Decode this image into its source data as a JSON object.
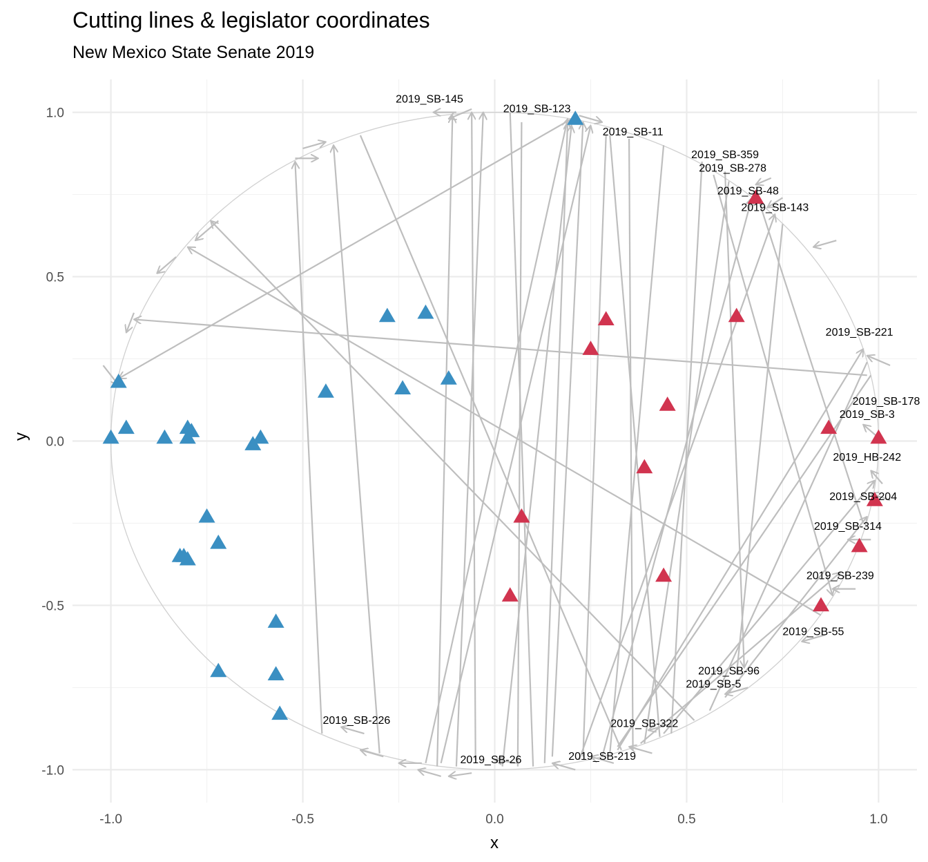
{
  "chart_data": {
    "type": "scatter",
    "title": "Cutting lines & legislator coordinates",
    "subtitle": "New Mexico State Senate 2019",
    "xlabel": "x",
    "ylabel": "y",
    "xlim": [
      -1.1,
      1.1
    ],
    "ylim": [
      -1.1,
      1.1
    ],
    "x_ticks": [
      -1.0,
      -0.5,
      0.0,
      0.5,
      1.0
    ],
    "y_ticks": [
      -1.0,
      -0.5,
      0.0,
      0.5,
      1.0
    ],
    "x_tick_labels": [
      "-1.0",
      "-0.5",
      "0.0",
      "0.5",
      "1.0"
    ],
    "y_tick_labels": [
      "-1.0",
      "-0.5",
      "0.0",
      "0.5",
      "1.0"
    ],
    "grid": true,
    "legend": "none",
    "unit_circle": true,
    "colors": {
      "blue": "#3a8fc2",
      "red": "#d1344f",
      "cut": "#bebebe",
      "circle": "#d0d0d0"
    },
    "series": [
      {
        "color": "#3a8fc2",
        "points": [
          {
            "x": 0.21,
            "y": 0.98
          },
          {
            "x": -0.18,
            "y": 0.39
          },
          {
            "x": -0.28,
            "y": 0.38
          },
          {
            "x": -0.12,
            "y": 0.19
          },
          {
            "x": -0.24,
            "y": 0.16
          },
          {
            "x": -0.44,
            "y": 0.15
          },
          {
            "x": -0.98,
            "y": 0.18
          },
          {
            "x": -0.96,
            "y": 0.04
          },
          {
            "x": -1.0,
            "y": 0.01
          },
          {
            "x": -0.86,
            "y": 0.01
          },
          {
            "x": -0.8,
            "y": 0.04
          },
          {
            "x": -0.79,
            "y": 0.03
          },
          {
            "x": -0.8,
            "y": 0.01
          },
          {
            "x": -0.61,
            "y": 0.01
          },
          {
            "x": -0.63,
            "y": -0.01
          },
          {
            "x": -0.75,
            "y": -0.23
          },
          {
            "x": -0.72,
            "y": -0.31
          },
          {
            "x": -0.81,
            "y": -0.35
          },
          {
            "x": -0.82,
            "y": -0.35
          },
          {
            "x": -0.8,
            "y": -0.36
          },
          {
            "x": -0.57,
            "y": -0.55
          },
          {
            "x": -0.72,
            "y": -0.7
          },
          {
            "x": -0.57,
            "y": -0.71
          },
          {
            "x": -0.56,
            "y": -0.83
          }
        ]
      },
      {
        "color": "#d1344f",
        "points": [
          {
            "x": 0.68,
            "y": 0.74
          },
          {
            "x": 0.63,
            "y": 0.38
          },
          {
            "x": 0.29,
            "y": 0.37
          },
          {
            "x": 0.25,
            "y": 0.28
          },
          {
            "x": 0.45,
            "y": 0.11
          },
          {
            "x": 0.87,
            "y": 0.04
          },
          {
            "x": 1.0,
            "y": 0.01
          },
          {
            "x": 0.39,
            "y": -0.08
          },
          {
            "x": 0.07,
            "y": -0.23
          },
          {
            "x": 0.99,
            "y": -0.18
          },
          {
            "x": 0.95,
            "y": -0.32
          },
          {
            "x": 0.44,
            "y": -0.41
          },
          {
            "x": 0.04,
            "y": -0.47
          },
          {
            "x": 0.85,
            "y": -0.5
          }
        ]
      }
    ],
    "vote_labels": [
      {
        "text": "2019_SB-145",
        "x": -0.17,
        "y": 1.03
      },
      {
        "text": "2019_SB-123",
        "x": 0.11,
        "y": 1.0
      },
      {
        "text": "2019_SB-11",
        "x": 0.36,
        "y": 0.93
      },
      {
        "text": "2019_SB-359",
        "x": 0.6,
        "y": 0.86
      },
      {
        "text": "2019_SB-278",
        "x": 0.62,
        "y": 0.82
      },
      {
        "text": "2019_SB-48",
        "x": 0.66,
        "y": 0.75
      },
      {
        "text": "2019_SB-143",
        "x": 0.73,
        "y": 0.7
      },
      {
        "text": "2019_SB-221",
        "x": 0.95,
        "y": 0.32
      },
      {
        "text": "2019_SB-178",
        "x": 1.02,
        "y": 0.11
      },
      {
        "text": "2019_SB-3",
        "x": 0.97,
        "y": 0.07
      },
      {
        "text": "2019_HB-242",
        "x": 0.97,
        "y": -0.06
      },
      {
        "text": "2019_SB-204",
        "x": 0.96,
        "y": -0.18
      },
      {
        "text": "2019_SB-314",
        "x": 0.92,
        "y": -0.27
      },
      {
        "text": "2019_SB-239",
        "x": 0.9,
        "y": -0.42
      },
      {
        "text": "2019_SB-55",
        "x": 0.83,
        "y": -0.59
      },
      {
        "text": "2019_SB-96",
        "x": 0.61,
        "y": -0.71
      },
      {
        "text": "2019_SB-5",
        "x": 0.57,
        "y": -0.75
      },
      {
        "text": "2019_SB-322",
        "x": 0.39,
        "y": -0.87
      },
      {
        "text": "2019_SB-226",
        "x": -0.36,
        "y": -0.86
      },
      {
        "text": "2019_SB-26",
        "x": -0.01,
        "y": -0.98
      },
      {
        "text": "2019_SB-219",
        "x": 0.28,
        "y": -0.97
      }
    ],
    "cutting_lines": [
      {
        "x1": -0.98,
        "y1": 0.19,
        "x2": 0.2,
        "y2": 0.98,
        "arrow": "start"
      },
      {
        "x1": -0.94,
        "y1": 0.37,
        "x2": 0.97,
        "y2": 0.2,
        "arrow": "start"
      },
      {
        "x1": -0.74,
        "y1": 0.67,
        "x2": 0.52,
        "y2": -0.85,
        "arrow": "start"
      },
      {
        "x1": -0.8,
        "y1": 0.59,
        "x2": 0.85,
        "y2": -0.53,
        "arrow": "start"
      },
      {
        "x1": -0.52,
        "y1": 0.85,
        "x2": -0.45,
        "y2": -0.89,
        "arrow": "start"
      },
      {
        "x1": -0.42,
        "y1": 0.9,
        "x2": -0.3,
        "y2": -0.95,
        "arrow": "start"
      },
      {
        "x1": -0.35,
        "y1": 0.93,
        "x2": 0.33,
        "y2": -0.94,
        "arrow": "none"
      },
      {
        "x1": -0.11,
        "y1": 0.99,
        "x2": -0.15,
        "y2": -0.99,
        "arrow": "start"
      },
      {
        "x1": -0.06,
        "y1": 1.0,
        "x2": -0.05,
        "y2": -0.97,
        "arrow": "start"
      },
      {
        "x1": -0.03,
        "y1": 1.0,
        "x2": -0.1,
        "y2": -0.99,
        "arrow": "start"
      },
      {
        "x1": 0.04,
        "y1": 1.0,
        "x2": 0.1,
        "y2": -0.99,
        "arrow": "none"
      },
      {
        "x1": 0.07,
        "y1": 0.97,
        "x2": 0.06,
        "y2": -0.99,
        "arrow": "none"
      },
      {
        "x1": 0.19,
        "y1": 0.98,
        "x2": -0.18,
        "y2": -0.98,
        "arrow": "start"
      },
      {
        "x1": 0.2,
        "y1": 0.96,
        "x2": 0.02,
        "y2": -0.99,
        "arrow": "start"
      },
      {
        "x1": 0.19,
        "y1": 0.97,
        "x2": 0.13,
        "y2": -0.98,
        "arrow": "start"
      },
      {
        "x1": 0.23,
        "y1": 0.97,
        "x2": 0.15,
        "y2": -0.96,
        "arrow": "start"
      },
      {
        "x1": 0.25,
        "y1": 0.96,
        "x2": -0.14,
        "y2": -0.98,
        "arrow": "start"
      },
      {
        "x1": 0.29,
        "y1": 0.93,
        "x2": 0.23,
        "y2": -0.96,
        "arrow": "none"
      },
      {
        "x1": 0.3,
        "y1": 0.93,
        "x2": 0.43,
        "y2": -0.9,
        "arrow": "none"
      },
      {
        "x1": 0.35,
        "y1": 0.92,
        "x2": 0.36,
        "y2": -0.94,
        "arrow": "none"
      },
      {
        "x1": 0.44,
        "y1": 0.9,
        "x2": 0.3,
        "y2": -0.95,
        "arrow": "none"
      },
      {
        "x1": 0.54,
        "y1": 0.85,
        "x2": 0.46,
        "y2": -0.89,
        "arrow": "none"
      },
      {
        "x1": 0.61,
        "y1": 0.79,
        "x2": 0.39,
        "y2": -0.92,
        "arrow": "none"
      },
      {
        "x1": 0.6,
        "y1": 0.82,
        "x2": 0.65,
        "y2": -0.69,
        "arrow": "end"
      },
      {
        "x1": 0.57,
        "y1": 0.81,
        "x2": 0.88,
        "y2": -0.47,
        "arrow": "end"
      },
      {
        "x1": 0.67,
        "y1": 0.74,
        "x2": 0.28,
        "y2": -0.96,
        "arrow": "start"
      },
      {
        "x1": 0.73,
        "y1": 0.69,
        "x2": 0.22,
        "y2": -0.97,
        "arrow": "start"
      },
      {
        "x1": 0.75,
        "y1": 0.66,
        "x2": 0.63,
        "y2": -0.71,
        "arrow": "none"
      },
      {
        "x1": 0.96,
        "y1": 0.28,
        "x2": 0.32,
        "y2": -0.94,
        "arrow": "start"
      },
      {
        "x1": 0.97,
        "y1": 0.24,
        "x2": 0.56,
        "y2": -0.82,
        "arrow": "none"
      },
      {
        "x1": 0.98,
        "y1": 0.2,
        "x2": 0.32,
        "y2": -0.93,
        "arrow": "none"
      },
      {
        "x1": 0.97,
        "y1": -0.23,
        "x2": 0.6,
        "y2": -0.78,
        "arrow": "start"
      },
      {
        "x1": 0.9,
        "y1": -0.4,
        "x2": 0.38,
        "y2": -0.92,
        "arrow": "start"
      },
      {
        "x1": 0.99,
        "y1": -0.12,
        "x2": 0.44,
        "y2": -0.89,
        "arrow": "start"
      },
      {
        "x1": 0.68,
        "y1": 0.76,
        "x2": 0.96,
        "y2": -0.25,
        "arrow": "none"
      }
    ],
    "loose_arrows": [
      {
        "x": -0.44,
        "y": 0.91,
        "dx": 0.06,
        "dy": 0.02
      },
      {
        "x": -0.46,
        "y": 0.86,
        "dx": 0.06,
        "dy": 0.0
      },
      {
        "x": -0.78,
        "y": 0.61,
        "dx": -0.06,
        "dy": -0.06
      },
      {
        "x": -0.88,
        "y": 0.51,
        "dx": -0.05,
        "dy": -0.05
      },
      {
        "x": -0.96,
        "y": 0.33,
        "dx": -0.02,
        "dy": -0.06
      },
      {
        "x": -0.98,
        "y": 0.17,
        "dx": 0.04,
        "dy": -0.06
      },
      {
        "x": -0.16,
        "y": 1.0,
        "dx": -0.06,
        "dy": 0.0
      },
      {
        "x": -0.12,
        "y": 0.98,
        "dx": -0.06,
        "dy": -0.03
      },
      {
        "x": 0.28,
        "y": 0.97,
        "dx": 0.06,
        "dy": -0.02
      },
      {
        "x": 0.83,
        "y": 0.59,
        "dx": -0.06,
        "dy": -0.02
      },
      {
        "x": 0.71,
        "y": 0.71,
        "dx": -0.04,
        "dy": -0.03
      },
      {
        "x": 0.68,
        "y": 0.78,
        "dx": -0.04,
        "dy": -0.02
      },
      {
        "x": 0.97,
        "y": 0.26,
        "dx": -0.06,
        "dy": 0.03
      },
      {
        "x": 0.96,
        "y": 0.05,
        "dx": -0.04,
        "dy": 0.04
      },
      {
        "x": 0.98,
        "y": -0.09,
        "dx": -0.03,
        "dy": 0.04
      },
      {
        "x": 0.98,
        "y": -0.16,
        "dx": -0.05,
        "dy": 0.02
      },
      {
        "x": 0.92,
        "y": -0.3,
        "dx": -0.06,
        "dy": 0.0
      },
      {
        "x": 0.88,
        "y": -0.45,
        "dx": -0.06,
        "dy": 0.0
      },
      {
        "x": 0.8,
        "y": -0.61,
        "dx": -0.06,
        "dy": -0.02
      },
      {
        "x": 0.6,
        "y": -0.77,
        "dx": -0.06,
        "dy": -0.02
      },
      {
        "x": 0.4,
        "y": -0.88,
        "dx": -0.06,
        "dy": -0.02
      },
      {
        "x": -0.4,
        "y": -0.87,
        "dx": -0.06,
        "dy": 0.02
      },
      {
        "x": -0.35,
        "y": -0.94,
        "dx": -0.06,
        "dy": 0.02
      },
      {
        "x": -0.25,
        "y": -0.98,
        "dx": -0.06,
        "dy": 0.0
      },
      {
        "x": -0.2,
        "y": -1.0,
        "dx": -0.06,
        "dy": 0.02
      },
      {
        "x": -0.12,
        "y": -1.02,
        "dx": -0.06,
        "dy": -0.01
      },
      {
        "x": 0.0,
        "y": -0.97,
        "dx": -0.06,
        "dy": 0.01
      },
      {
        "x": 0.15,
        "y": -0.98,
        "dx": -0.06,
        "dy": 0.02
      },
      {
        "x": 0.25,
        "y": -0.96,
        "dx": -0.06,
        "dy": 0.02
      },
      {
        "x": 0.35,
        "y": -0.93,
        "dx": -0.06,
        "dy": 0.02
      }
    ]
  }
}
